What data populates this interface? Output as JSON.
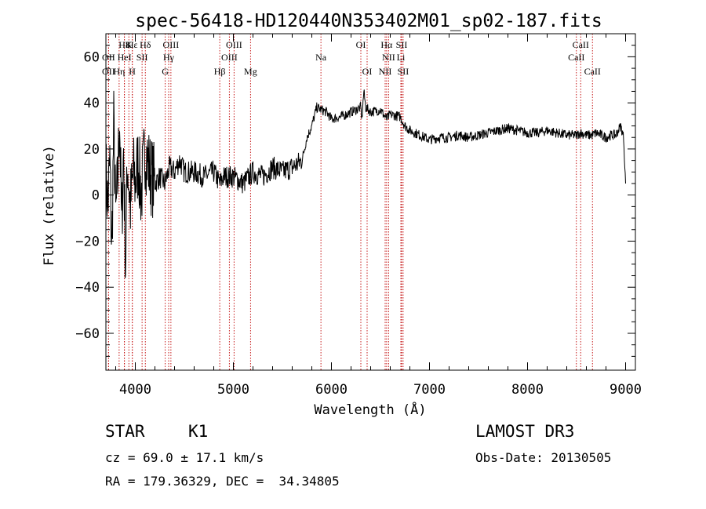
{
  "chart_data": {
    "type": "line",
    "title": "spec-56418-HD120440N353402M01_sp02-187.fits",
    "xlabel": "Wavelength (Å)",
    "ylabel": "Flux (relative)",
    "xlim": [
      3700,
      9100
    ],
    "ylim": [
      -76,
      70
    ],
    "xticks": [
      4000,
      5000,
      6000,
      7000,
      8000,
      9000
    ],
    "xtick_labels": [
      "4000",
      "5000",
      "6000",
      "7000",
      "8000",
      "9000"
    ],
    "yticks": [
      -60,
      -40,
      -20,
      0,
      20,
      40,
      60
    ],
    "ytick_labels": [
      "−60",
      "−40",
      "−20",
      "0",
      "20",
      "40",
      "60"
    ],
    "grid": false,
    "series": [
      {
        "name": "flux",
        "x": [
          3700,
          3720,
          3740,
          3760,
          3780,
          3800,
          3820,
          3840,
          3860,
          3880,
          3900,
          3920,
          3950,
          3980,
          4000,
          4030,
          4060,
          4100,
          4150,
          4200,
          4250,
          4300,
          4350,
          4400,
          4450,
          4500,
          4600,
          4700,
          4800,
          4862,
          4900,
          5000,
          5100,
          5200,
          5300,
          5400,
          5500,
          5600,
          5700,
          5750,
          5800,
          5850,
          5900,
          5950,
          6000,
          6100,
          6200,
          6300,
          6310,
          6330,
          6350,
          6400,
          6500,
          6563,
          6600,
          6700,
          6750,
          6800,
          6900,
          7000,
          7100,
          7200,
          7300,
          7400,
          7500,
          7600,
          7700,
          7800,
          7900,
          8000,
          8100,
          8200,
          8300,
          8400,
          8498,
          8542,
          8600,
          8662,
          8700,
          8800,
          8850,
          8900,
          8950,
          8980,
          9000
        ],
        "y": [
          10,
          -5,
          15,
          -25,
          30,
          -10,
          5,
          35,
          -15,
          20,
          -30,
          15,
          -5,
          10,
          5,
          15,
          0,
          20,
          10,
          5,
          8,
          5,
          12,
          10,
          15,
          10,
          10,
          8,
          10,
          5,
          8,
          8,
          5,
          10,
          8,
          12,
          10,
          12,
          15,
          25,
          30,
          38,
          37,
          36,
          33,
          34,
          36,
          38,
          33,
          45,
          38,
          36,
          37,
          33,
          35,
          34,
          30,
          28,
          26,
          24,
          25,
          25,
          26,
          25,
          26,
          27,
          28,
          29,
          28,
          27,
          27,
          28,
          27,
          26,
          26,
          27,
          26,
          26,
          27,
          25,
          26,
          26,
          30,
          25,
          5
        ]
      }
    ],
    "lines": [
      {
        "label": "Hδ",
        "x": 4102,
        "row": 1
      },
      {
        "label": "Hε",
        "x": 3970,
        "row": 1
      },
      {
        "label": "K",
        "x": 3934,
        "row": 1
      },
      {
        "label": "H8",
        "x": 3889,
        "row": 1
      },
      {
        "label": "OII",
        "x": 3727,
        "row": 2
      },
      {
        "label": "HeI",
        "x": 3889,
        "row": 2
      },
      {
        "label": "SII",
        "x": 4069,
        "row": 2
      },
      {
        "label": "OII",
        "x": 3727,
        "row": 3
      },
      {
        "label": "Hη",
        "x": 3835,
        "row": 3
      },
      {
        "label": "H",
        "x": 3969,
        "row": 3
      },
      {
        "label": "OIII",
        "x": 4363,
        "row": 1
      },
      {
        "label": "Hγ",
        "x": 4340,
        "row": 2
      },
      {
        "label": "G",
        "x": 4305,
        "row": 3
      },
      {
        "label": "OIII",
        "x": 5007,
        "row": 1
      },
      {
        "label": "OIII",
        "x": 4959,
        "row": 2
      },
      {
        "label": "Hβ",
        "x": 4861,
        "row": 3
      },
      {
        "label": "Mg",
        "x": 5175,
        "row": 3
      },
      {
        "label": "Na",
        "x": 5893,
        "row": 2
      },
      {
        "label": "OI",
        "x": 6300,
        "row": 1
      },
      {
        "label": "OI",
        "x": 6364,
        "row": 3
      },
      {
        "label": "Hα",
        "x": 6563,
        "row": 1
      },
      {
        "label": "SII",
        "x": 6716,
        "row": 1
      },
      {
        "label": "NII",
        "x": 6583,
        "row": 2
      },
      {
        "label": "Li",
        "x": 6708,
        "row": 2
      },
      {
        "label": "NII",
        "x": 6548,
        "row": 3
      },
      {
        "label": "SII",
        "x": 6731,
        "row": 3
      },
      {
        "label": "CaII",
        "x": 8542,
        "row": 1
      },
      {
        "label": "CaII",
        "x": 8498,
        "row": 2
      },
      {
        "label": "CaII",
        "x": 8662,
        "row": 3
      }
    ]
  },
  "info": {
    "object_type": "STAR",
    "subclass": "K1",
    "survey": "LAMOST DR3",
    "cz": "cz = 69.0 ± 17.1 km/s",
    "obs_date": "Obs-Date: 20130505",
    "coords": "RA = 179.36329, DEC =  34.34805"
  }
}
